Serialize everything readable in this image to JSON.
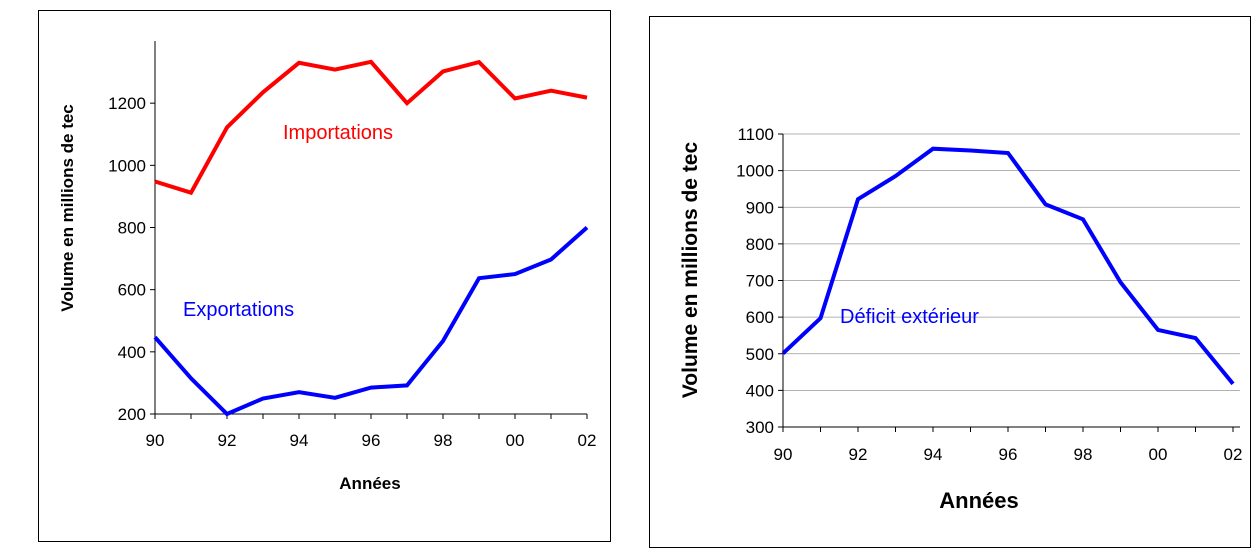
{
  "chart_data": [
    {
      "type": "line",
      "x_ticks": [
        "90",
        "92",
        "94",
        "96",
        "98",
        "00",
        "02"
      ],
      "xlabel": "Années",
      "ylabel": "Volume en millions de tec",
      "xlim": [
        1990,
        2002
      ],
      "ylim": [
        200,
        1400
      ],
      "y_ticks": [
        200,
        400,
        600,
        800,
        1000,
        1200
      ],
      "grid": false,
      "series": [
        {
          "name": "Importations",
          "color": "#ff0000",
          "x": [
            1990,
            1991,
            1992,
            1993,
            1994,
            1995,
            1996,
            1997,
            1998,
            1999,
            2000,
            2001,
            2002
          ],
          "values": [
            948,
            912,
            1122,
            1235,
            1330,
            1308,
            1333,
            1200,
            1302,
            1332,
            1215,
            1240,
            1218
          ]
        },
        {
          "name": "Exportations",
          "color": "#0000ff",
          "x": [
            1990,
            1991,
            1992,
            1993,
            1994,
            1995,
            1996,
            1997,
            1998,
            1999,
            2000,
            2001,
            2002
          ],
          "values": [
            447,
            315,
            200,
            250,
            270,
            252,
            285,
            292,
            435,
            637,
            650,
            697,
            800
          ]
        }
      ]
    },
    {
      "type": "line",
      "x_ticks": [
        "90",
        "92",
        "94",
        "96",
        "98",
        "00",
        "02"
      ],
      "xlabel": "Années",
      "ylabel": "Volume en millions de tec",
      "xlim": [
        1990,
        2002
      ],
      "ylim": [
        300,
        1100
      ],
      "y_ticks": [
        300,
        400,
        500,
        600,
        700,
        800,
        900,
        1000,
        1100
      ],
      "grid": true,
      "series": [
        {
          "name": "Déficit extérieur",
          "color": "#0000ff",
          "x": [
            1990,
            1991,
            1992,
            1993,
            1994,
            1995,
            1996,
            1997,
            1998,
            1999,
            2000,
            2001,
            2002
          ],
          "values": [
            501,
            597,
            922,
            985,
            1060,
            1055,
            1048,
            908,
            867,
            695,
            565,
            543,
            418
          ]
        }
      ]
    }
  ]
}
